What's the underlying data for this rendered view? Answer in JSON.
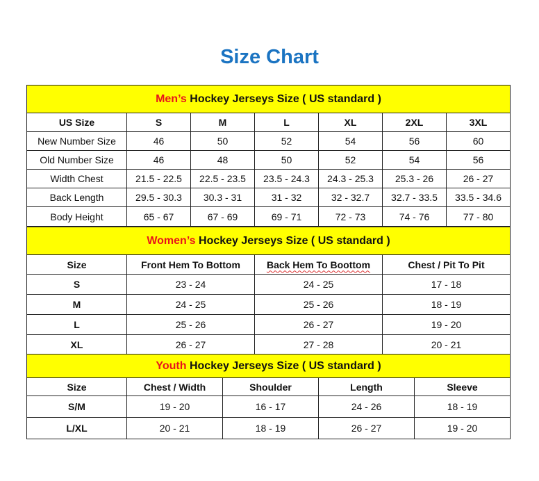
{
  "title": "Size Chart",
  "men": {
    "heading_accent": "Men’s",
    "heading_rest": " Hockey Jerseys Size ( US standard )",
    "header": [
      "US Size",
      "S",
      "M",
      "L",
      "XL",
      "2XL",
      "3XL"
    ],
    "rows": [
      [
        "New Number Size",
        "46",
        "50",
        "52",
        "54",
        "56",
        "60"
      ],
      [
        "Old Number Size",
        "46",
        "48",
        "50",
        "52",
        "54",
        "56"
      ],
      [
        "Width Chest",
        "21.5 - 22.5",
        "22.5 - 23.5",
        "23.5 - 24.3",
        "24.3 - 25.3",
        "25.3 - 26",
        "26 - 27"
      ],
      [
        "Back Length",
        "29.5 - 30.3",
        "30.3 - 31",
        "31 - 32",
        "32 - 32.7",
        "32.7 - 33.5",
        "33.5 - 34.6"
      ],
      [
        "Body Height",
        "65 - 67",
        "67 - 69",
        "69 - 71",
        "72 - 73",
        "74 - 76",
        "77 - 80"
      ]
    ]
  },
  "women": {
    "heading_accent": "Women’s",
    "heading_rest": " Hockey Jerseys Size ( US standard )",
    "header": [
      "Size",
      "Front Hem To Bottom",
      "Back Hem To Boottom",
      "Chest / Pit To Pit"
    ],
    "rows": [
      [
        "S",
        "23 - 24",
        "24 - 25",
        "17 - 18"
      ],
      [
        "M",
        "24 - 25",
        "25 - 26",
        "18 - 19"
      ],
      [
        "L",
        "25 - 26",
        "26 - 27",
        "19 - 20"
      ],
      [
        "XL",
        "26 - 27",
        "27 - 28",
        "20 - 21"
      ]
    ]
  },
  "youth": {
    "heading_accent": "Youth",
    "heading_rest": " Hockey Jerseys Size ( US standard )",
    "header": [
      "Size",
      "Chest / Width",
      "Shoulder",
      "Length",
      "Sleeve"
    ],
    "rows": [
      [
        "S/M",
        "19 - 20",
        "16 - 17",
        "24 - 26",
        "18 - 19"
      ],
      [
        "L/XL",
        "20 - 21",
        "18 - 19",
        "26 - 27",
        "19 - 20"
      ]
    ]
  },
  "colors": {
    "title": "#1b74c2",
    "header_bg": "#ffff00",
    "accent": "#e8151b"
  }
}
